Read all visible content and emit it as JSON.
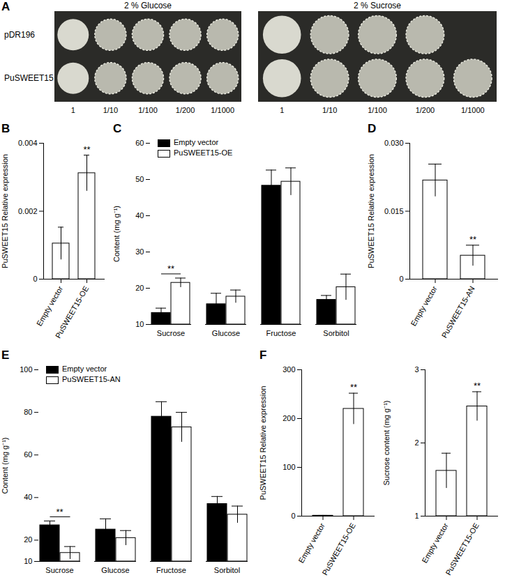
{
  "panel_labels": [
    "A",
    "B",
    "C",
    "D",
    "E",
    "F"
  ],
  "yeast_assay": {
    "media": [
      "2 % Glucose",
      "2 % Sucrose"
    ],
    "strains": [
      "pDR196",
      "PuSWEET15"
    ],
    "dilutions": [
      "1",
      "1/10",
      "1/100",
      "1/200",
      "1/1000"
    ],
    "growth": [
      [
        [
          true,
          true,
          true,
          true,
          true
        ],
        [
          true,
          true,
          true,
          true,
          true
        ]
      ],
      [
        [
          true,
          true,
          true,
          true,
          false
        ],
        [
          true,
          true,
          true,
          true,
          true
        ]
      ]
    ]
  },
  "chart_data": [
    {
      "type": "bar",
      "ylabel": "PuSWEET15 Relative expression",
      "categories": [
        "Empty vector",
        "PuSWEET15-OE"
      ],
      "values": [
        0.00105,
        0.00312
      ],
      "errors": [
        0.00048,
        0.00053
      ],
      "color": "#ffffff",
      "ylim": [
        0,
        0.004
      ],
      "yticks": [
        0,
        0.002,
        0.004
      ],
      "annotations": [
        {
          "category": "PuSWEET15-OE",
          "text": "**"
        }
      ]
    },
    {
      "type": "bar",
      "ylabel": "Content (mg g⁻¹)",
      "categories": [
        "Sucrose",
        "Glucose",
        "Fructose",
        "Sorbitol"
      ],
      "series": [
        {
          "name": "Empty vector",
          "color": "#000000",
          "values": [
            13.2,
            15.6,
            48.3,
            16.8
          ],
          "errors": [
            1.3,
            3.0,
            4.3,
            1.2
          ]
        },
        {
          "name": "PuSWEET15-OE",
          "color": "#ffffff",
          "values": [
            21.5,
            17.7,
            49.4,
            20.3
          ],
          "errors": [
            1.3,
            1.8,
            3.8,
            3.6
          ]
        }
      ],
      "ylim": [
        10,
        60
      ],
      "yticks": [
        10,
        20,
        30,
        40,
        50,
        60
      ],
      "legend": "top-left",
      "annotations": [
        {
          "category": "Sucrose",
          "text": "**"
        }
      ]
    },
    {
      "type": "bar",
      "ylabel": "PuSWEET15 Relative expression",
      "categories": [
        "Empty vector",
        "PuSWEET15-AN"
      ],
      "values": [
        0.0218,
        0.0052
      ],
      "errors": [
        0.0036,
        0.0023
      ],
      "color": "#ffffff",
      "ylim": [
        0,
        0.03
      ],
      "yticks": [
        0,
        0.015,
        {
          "value": 0.03,
          "label": "0.030"
        }
      ],
      "annotations": [
        {
          "category": "PuSWEET15-AN",
          "text": "**"
        }
      ]
    },
    {
      "type": "bar",
      "ylabel": "Content (mg g⁻¹)",
      "categories": [
        "Sucrose",
        "Glucose",
        "Fructose",
        "Sorbitol"
      ],
      "series": [
        {
          "name": "Empty vector",
          "color": "#000000",
          "values": [
            27,
            25,
            78,
            37
          ],
          "errors": [
            2,
            5,
            7,
            3.5
          ]
        },
        {
          "name": "PuSWEET15-AN",
          "color": "#ffffff",
          "values": [
            14,
            21,
            73,
            32
          ],
          "errors": [
            3,
            3.5,
            7,
            4
          ]
        }
      ],
      "ylim": [
        10,
        100
      ],
      "yticks": [
        10,
        20,
        40,
        60,
        80,
        100
      ],
      "legend": "top-left",
      "annotations": [
        {
          "category": "Sucrose",
          "text": "**"
        }
      ]
    },
    {
      "type": "bar",
      "ylabel": "PuSWEET15 Relative expression",
      "categories": [
        "Empty vector",
        "PuSWEET15-OE"
      ],
      "values": [
        1,
        220
      ],
      "errors": [
        0.5,
        32
      ],
      "color": "#ffffff",
      "ylim": [
        0,
        300
      ],
      "yticks": [
        0,
        100,
        200,
        300
      ],
      "annotations": [
        {
          "category": "PuSWEET15-OE",
          "text": "**"
        }
      ]
    },
    {
      "type": "bar",
      "ylabel": "Sucrose content (mg g⁻¹)",
      "categories": [
        "Empty vector",
        "PuSWEET15-OE"
      ],
      "values": [
        1.62,
        2.5
      ],
      "errors": [
        0.24,
        0.2
      ],
      "color": "#ffffff",
      "ylim": [
        1,
        3
      ],
      "yticks": [
        1,
        2,
        3
      ],
      "annotations": [
        {
          "category": "PuSWEET15-OE",
          "text": "**"
        }
      ]
    }
  ]
}
